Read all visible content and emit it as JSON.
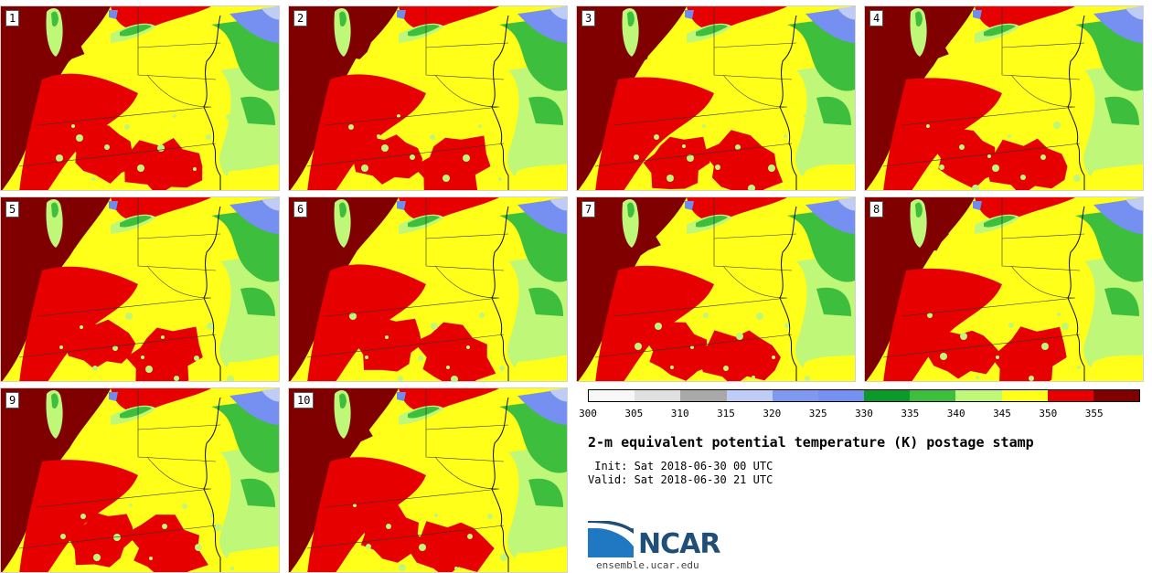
{
  "stamps": [
    {
      "label": "1"
    },
    {
      "label": "2"
    },
    {
      "label": "3"
    },
    {
      "label": "4"
    },
    {
      "label": "5"
    },
    {
      "label": "6"
    },
    {
      "label": "7"
    },
    {
      "label": "8"
    },
    {
      "label": "9"
    },
    {
      "label": "10"
    }
  ],
  "colorbar": {
    "colors": [
      "#f7f7f7",
      "#e0e0e0",
      "#a8a8a8",
      "#c0ccf8",
      "#8098f0",
      "#7590f0",
      "#0a9a2a",
      "#3dbe3d",
      "#bff778",
      "#ffff1a",
      "#e60000",
      "#800000"
    ],
    "ticks": [
      "300",
      "305",
      "310",
      "315",
      "320",
      "325",
      "330",
      "335",
      "340",
      "345",
      "350",
      "355"
    ]
  },
  "title": "2-m equivalent potential temperature (K) postage stamp",
  "init_line": " Init: Sat 2018-06-30 00 UTC",
  "valid_line": "Valid: Sat 2018-06-30 21 UTC",
  "logo_text": "NCAR",
  "website": "ensemble.ucar.edu",
  "palette": {
    "dark_red": "#800000",
    "red": "#e60000",
    "yellow": "#ffff1a",
    "light_green": "#bff778",
    "green": "#3dbe3d",
    "dark_green": "#0a9a2a",
    "blue": "#7590f0",
    "light_blue": "#c0ccf8",
    "lake": "#6e8cf0"
  }
}
